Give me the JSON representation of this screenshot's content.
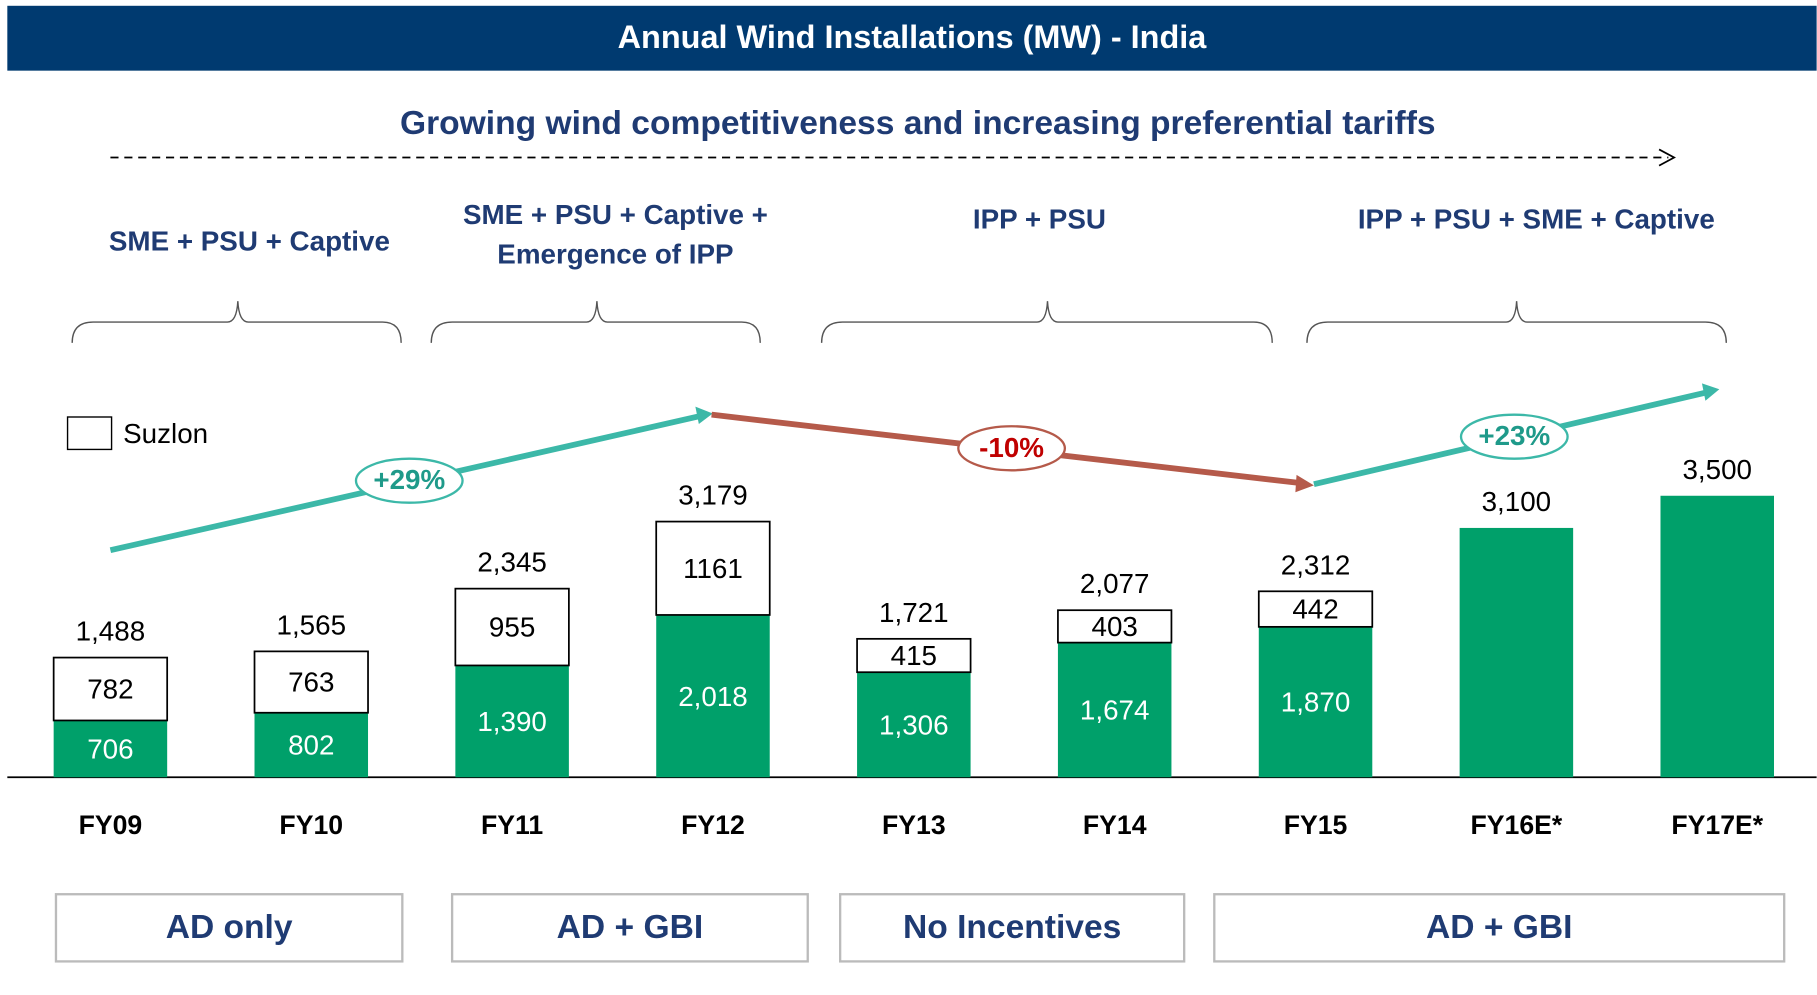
{
  "chart_data": {
    "type": "bar",
    "stacked": true,
    "title": "Annual Wind Installations (MW) - India",
    "subtitle": "Growing wind competitiveness and increasing preferential tariffs",
    "categories": [
      "FY09",
      "FY10",
      "FY11",
      "FY12",
      "FY13",
      "FY14",
      "FY15",
      "FY16E*",
      "FY17E*"
    ],
    "series": [
      {
        "color": "#00a06a",
        "values": [
          706,
          802,
          1390,
          2018,
          1306,
          1674,
          1870,
          3100,
          3500
        ],
        "value_labels": [
          "706",
          "802",
          "1,390",
          "2,018",
          "1,306",
          "1,674",
          "1,870",
          null,
          null
        ]
      },
      {
        "name": "Suzlon",
        "color": "#ffffff",
        "values": [
          782,
          763,
          955,
          1161,
          415,
          403,
          442,
          null,
          null
        ]
      }
    ],
    "totals": [
      1488,
      1565,
      2345,
      3179,
      1721,
      2077,
      2312,
      3100,
      3500
    ],
    "total_labels": [
      "1,488",
      "1,565",
      "2,345",
      "3,179",
      "1,721",
      "2,077",
      "2,312",
      "3,100",
      "3,500"
    ],
    "ylim": [
      0,
      3500
    ],
    "legend": "upper left",
    "groups": [
      [
        "SME + PSU + Captive"
      ],
      [
        "SME + PSU + Captive +",
        "Emergence of IPP"
      ],
      [
        "IPP + PSU"
      ],
      [
        "IPP + PSU + SME + Captive"
      ]
    ],
    "growth": [
      "+29%",
      "-10%",
      "+23%"
    ],
    "incentives": [
      "AD only",
      "AD + GBI",
      "No Incentives",
      "AD + GBI"
    ]
  }
}
